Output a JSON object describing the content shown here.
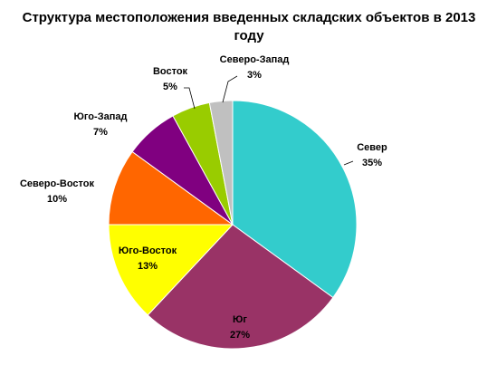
{
  "chart_data": {
    "type": "pie",
    "title": "Структура местоположения введенных  складских объектов в 2013 году",
    "categories": [
      "Север",
      "Юг",
      "Юго-Восток",
      "Северо-Восток",
      "Юго-Запад",
      "Восток",
      "Северо-Запад"
    ],
    "values": [
      35,
      27,
      13,
      10,
      7,
      5,
      3
    ],
    "value_labels": [
      "35%",
      "27%",
      "13%",
      "10%",
      "7%",
      "5%",
      "3%"
    ],
    "colors": [
      "#33cccc",
      "#993366",
      "#ffff00",
      "#ff6600",
      "#800080",
      "#99cc00",
      "#c0c0c0"
    ]
  }
}
